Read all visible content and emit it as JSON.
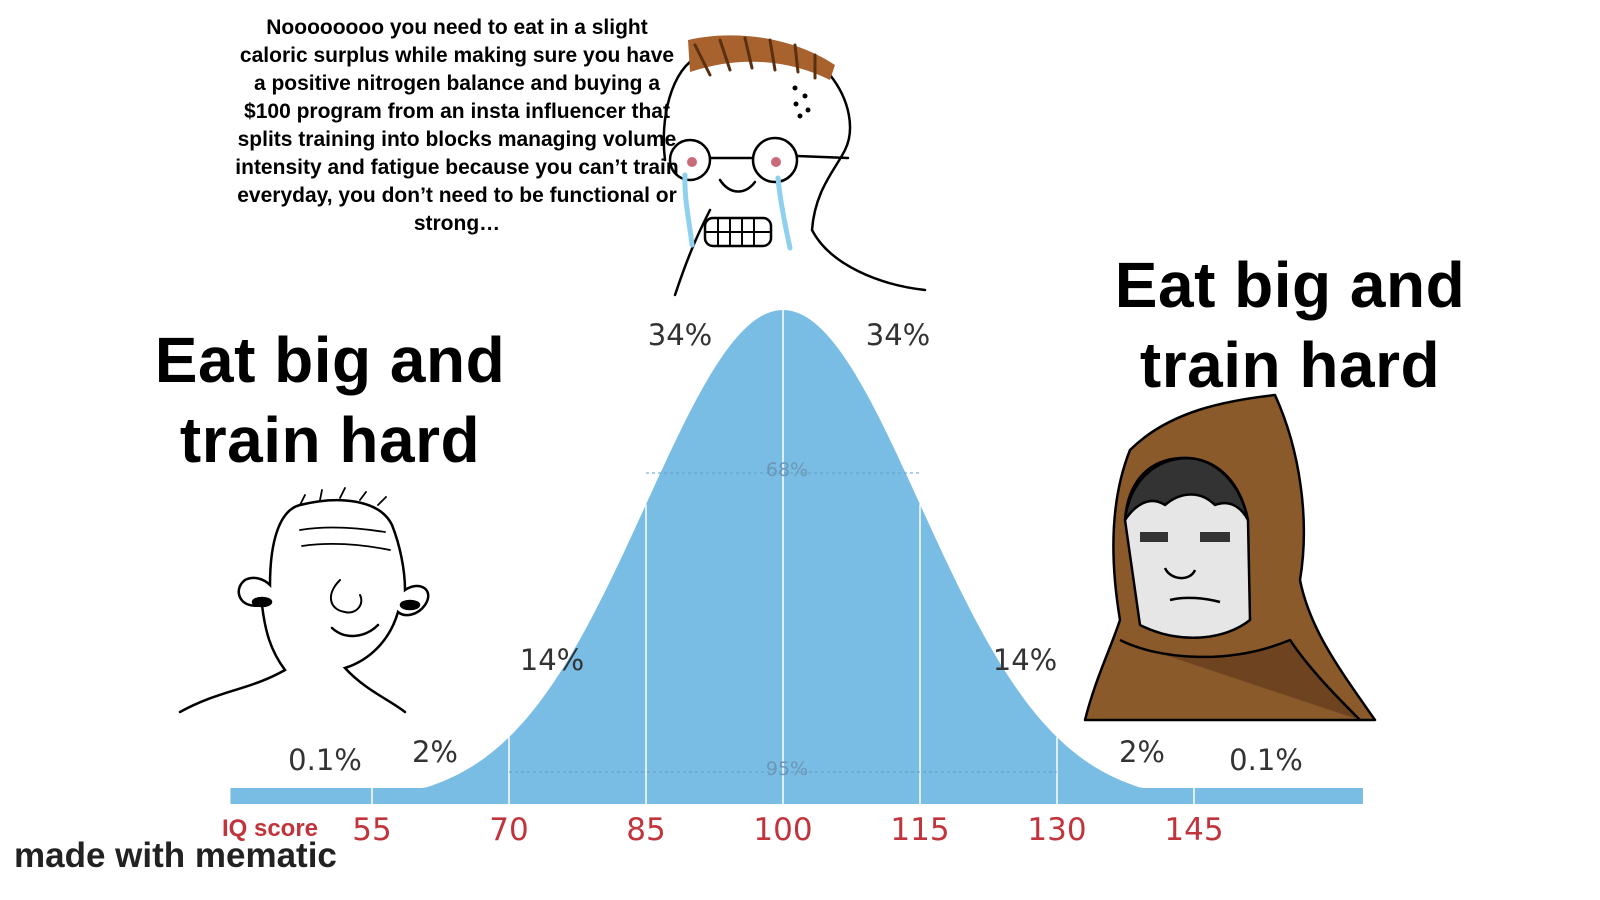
{
  "top_text": "Noooooooo you need to eat in a slight caloric surplus while making sure you have a positive nitrogen balance and buying a $100 program from an insta influencer that splits training into blocks managing volume intensity and fatigue because you can’t train everyday, you don’t need to be functional or strong…",
  "left_slogan": {
    "line1": "Eat big and",
    "line2": "train hard"
  },
  "right_slogan": {
    "line1": "Eat big and",
    "line2": "train hard"
  },
  "watermark": "made with mematic",
  "colors": {
    "curve": "#7abde4",
    "tick_text": "#c2343c",
    "hood": "#8b5a2b"
  },
  "chart_data": {
    "type": "area",
    "xlabel": "IQ score",
    "ticks": [
      55,
      70,
      85,
      100,
      115,
      130,
      145
    ],
    "mean": 100,
    "sd": 15,
    "band_labels": [
      "0.1%",
      "2%",
      "14%",
      "34%",
      "34%",
      "14%",
      "2%",
      "0.1%"
    ],
    "inner_labels": [
      "68%",
      "95%"
    ]
  }
}
